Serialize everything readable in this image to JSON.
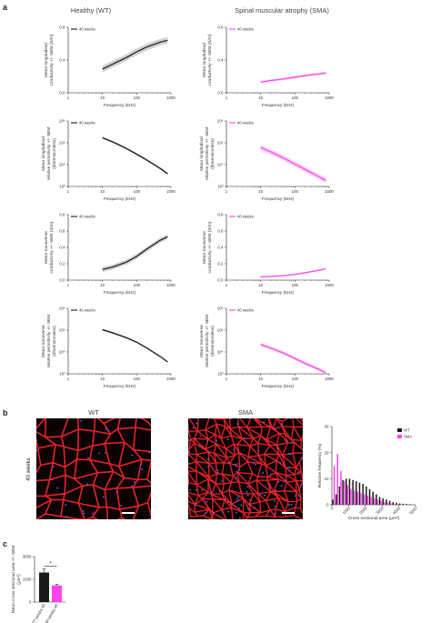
{
  "figure": {
    "panel_labels": [
      "a",
      "b",
      "c"
    ],
    "column_titles": {
      "wt": "Healthy (WT)",
      "sma": "Spinal muscular atrophy (SMA)"
    },
    "micrograph_labels": {
      "wt": "WT",
      "sma": "SMA",
      "row": "40 weeks"
    }
  },
  "colors": {
    "wt": "#1a1a1a",
    "sma": "#ff44ee",
    "band_wt": "#c8c8c8",
    "band_sma": "#f8c6f1",
    "fiber_red": "#e8222a",
    "nuclei_blue": "#4a6cff"
  },
  "chart_data": [
    {
      "id": "wt-long-cond",
      "type": "line",
      "xlabel": "Frequency (kHz)",
      "ylabel": [
        "Mean longitudinal",
        "conductivity +/- SEM (S/m)"
      ],
      "x_scale": "log",
      "xlim": [
        1,
        1000
      ],
      "xticks": [
        "1",
        "10",
        "100",
        "1000"
      ],
      "y_scale": "linear",
      "ylim": [
        0,
        0.8
      ],
      "yticks": [
        "0.0",
        "0.4",
        "0.8"
      ],
      "series": [
        {
          "name": "40 weeks",
          "color": "#1a1a1a",
          "x": [
            10,
            20,
            50,
            100,
            200,
            500,
            800
          ],
          "y": [
            0.29,
            0.35,
            0.43,
            0.5,
            0.56,
            0.62,
            0.64
          ],
          "sem": 0.04
        }
      ]
    },
    {
      "id": "sma-long-cond",
      "type": "line",
      "xlabel": "Frequency (kHz)",
      "ylabel": [
        "Mean longitudinal",
        "conductivity +/- SEM (S/m)"
      ],
      "x_scale": "log",
      "xlim": [
        1,
        1000
      ],
      "xticks": [
        "1",
        "10",
        "100",
        "1000"
      ],
      "y_scale": "linear",
      "ylim": [
        0,
        0.8
      ],
      "yticks": [
        "0.0",
        "0.4",
        "0.8"
      ],
      "series": [
        {
          "name": "40 weeks",
          "color": "#ff44ee",
          "x": [
            10,
            20,
            50,
            100,
            200,
            500,
            800
          ],
          "y": [
            0.13,
            0.15,
            0.17,
            0.19,
            0.21,
            0.23,
            0.24
          ],
          "sem": 0.015
        }
      ]
    },
    {
      "id": "wt-long-perm",
      "type": "line",
      "xlabel": "Frequency (kHz)",
      "ylabel": [
        "Mean longitudinal",
        "relative permittivity +/- SEM",
        "(dimensionless)"
      ],
      "x_scale": "log",
      "xlim": [
        1,
        1000
      ],
      "xticks": [
        "1",
        "10",
        "100",
        "1000"
      ],
      "y_scale": "log",
      "ylim": [
        1000,
        1000000
      ],
      "yticks": [
        "10³",
        "10⁴",
        "10⁵",
        "10⁶"
      ],
      "series": [
        {
          "name": "40 weeks",
          "color": "#1a1a1a",
          "x": [
            10,
            20,
            50,
            100,
            200,
            500,
            800
          ],
          "y": [
            170000,
            110000,
            55000,
            30000,
            16000,
            6500,
            3800
          ],
          "sem": 0.06
        }
      ]
    },
    {
      "id": "sma-long-perm",
      "type": "line",
      "xlabel": "Frequency (kHz)",
      "ylabel": [
        "Mean longitudinal",
        "relative permittivity +/- SEM",
        "(dimensionless)"
      ],
      "x_scale": "log",
      "xlim": [
        1,
        1000
      ],
      "xticks": [
        "1",
        "10",
        "100",
        "1000"
      ],
      "y_scale": "log",
      "ylim": [
        1000,
        1000000
      ],
      "yticks": [
        "10³",
        "10⁴",
        "10⁵",
        "10⁶"
      ],
      "series": [
        {
          "name": "40 weeks",
          "color": "#ff44ee",
          "x": [
            10,
            20,
            50,
            100,
            200,
            500,
            800
          ],
          "y": [
            60000,
            38000,
            19000,
            10500,
            6000,
            2800,
            1900
          ],
          "sem": 0.12
        }
      ]
    },
    {
      "id": "wt-trans-cond",
      "type": "line",
      "xlabel": "Frequency (kHz)",
      "ylabel": [
        "Mean transverse",
        "conductivity +/- SEM (S/m)"
      ],
      "x_scale": "log",
      "xlim": [
        1,
        1000
      ],
      "xticks": [
        "1",
        "10",
        "100",
        "1000"
      ],
      "y_scale": "linear",
      "ylim": [
        0,
        0.8
      ],
      "yticks": [
        "0.0",
        "0.2",
        "0.4",
        "0.6",
        "0.8"
      ],
      "series": [
        {
          "name": "40 weeks",
          "color": "#1a1a1a",
          "x": [
            10,
            20,
            50,
            100,
            200,
            500,
            800
          ],
          "y": [
            0.13,
            0.16,
            0.22,
            0.29,
            0.38,
            0.49,
            0.53
          ],
          "sem": 0.03
        }
      ]
    },
    {
      "id": "sma-trans-cond",
      "type": "line",
      "xlabel": "Frequency (kHz)",
      "ylabel": [
        "Mean transverse",
        "conductivity +/- SEM (S/m)"
      ],
      "x_scale": "log",
      "xlim": [
        1,
        1000
      ],
      "xticks": [
        "1",
        "10",
        "100",
        "1000"
      ],
      "y_scale": "linear",
      "ylim": [
        0,
        0.8
      ],
      "yticks": [
        "0.0",
        "0.2",
        "0.4",
        "0.6",
        "0.8"
      ],
      "series": [
        {
          "name": "40 weeks",
          "color": "#ff44ee",
          "x": [
            10,
            20,
            50,
            100,
            200,
            500,
            800
          ],
          "y": [
            0.04,
            0.045,
            0.055,
            0.07,
            0.09,
            0.12,
            0.14
          ],
          "sem": 0.01
        }
      ]
    },
    {
      "id": "wt-trans-perm",
      "type": "line",
      "xlabel": "Frequency (kHz)",
      "ylabel": [
        "Mean transverse",
        "relative permittivity +/- SEM",
        "(dimensionless)"
      ],
      "x_scale": "log",
      "xlim": [
        1,
        1000
      ],
      "xticks": [
        "1",
        "10",
        "100",
        "1000"
      ],
      "y_scale": "log",
      "ylim": [
        1000,
        1000000
      ],
      "yticks": [
        "10³",
        "10⁴",
        "10⁵",
        "10⁶"
      ],
      "series": [
        {
          "name": "40 weeks",
          "color": "#1a1a1a",
          "x": [
            10,
            20,
            50,
            100,
            200,
            500,
            800
          ],
          "y": [
            105000,
            75000,
            45000,
            28000,
            15000,
            6000,
            3500
          ],
          "sem": 0.05
        }
      ]
    },
    {
      "id": "sma-trans-perm",
      "type": "line",
      "xlabel": "Frequency (kHz)",
      "ylabel": [
        "Mean transverse",
        "relative permittivity +/- SEM",
        "(dimensionless)"
      ],
      "x_scale": "log",
      "xlim": [
        1,
        1000
      ],
      "xticks": [
        "1",
        "10",
        "100",
        "1000"
      ],
      "y_scale": "log",
      "ylim": [
        1000,
        1000000
      ],
      "yticks": [
        "10³",
        "10⁴",
        "10⁵",
        "10⁶"
      ],
      "series": [
        {
          "name": "40 weeks",
          "color": "#ff44ee",
          "x": [
            10,
            20,
            50,
            100,
            200,
            500,
            800
          ],
          "y": [
            22000,
            15000,
            8500,
            5000,
            3000,
            1600,
            1100
          ],
          "sem": 0.08
        }
      ]
    },
    {
      "id": "histogram",
      "type": "bar",
      "xlabel": "Cross sectional area (μm²)",
      "ylabel": "Relative frequency (%)",
      "xlim": [
        0,
        5000
      ],
      "xticks": [
        "0",
        "1000",
        "2000",
        "3000",
        "4000",
        "5000"
      ],
      "ylim": [
        0,
        30
      ],
      "yticks": [
        "0",
        "10",
        "20",
        "30"
      ],
      "legend": "top-right",
      "bin_width": 200,
      "series": [
        {
          "name": "WT",
          "color": "#1a1a1a",
          "values": [
            2,
            4,
            7,
            9.5,
            10,
            10,
            9.5,
            9,
            8.5,
            8,
            7,
            6,
            5,
            4,
            3,
            2.5,
            2,
            1.5,
            1,
            0.8,
            0.5,
            0.4,
            0.3,
            0.2,
            0.1
          ]
        },
        {
          "name": "SMA",
          "color": "#ff44ee",
          "values": [
            15,
            19.5,
            13,
            9,
            7.5,
            6,
            5.5,
            5,
            4.5,
            4,
            3.5,
            3,
            2.5,
            2,
            1.5,
            1,
            0.8,
            0.5,
            0.3,
            0.2,
            0.1,
            0.1,
            0,
            0,
            0
          ]
        }
      ]
    },
    {
      "id": "mean-csa",
      "type": "bar",
      "ylabel": [
        "Mean cross sectional area +/- SEM",
        "(μm²)"
      ],
      "ylim": [
        0,
        3000
      ],
      "yticks": [
        "0",
        "1500",
        "3000"
      ],
      "categories": [
        "WT weeks 40",
        "SMA weeks 40"
      ],
      "values": [
        1950,
        1100
      ],
      "sem": [
        230,
        80
      ],
      "colors": [
        "#1a1a1a",
        "#ff44ee"
      ],
      "annotation": "*"
    }
  ]
}
